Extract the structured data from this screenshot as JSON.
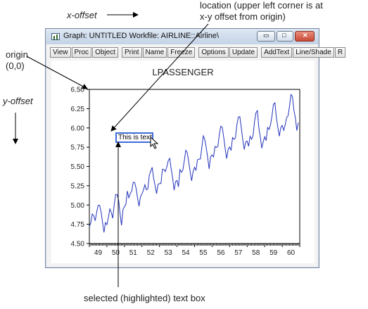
{
  "annotations": {
    "x_offset": "x-offset",
    "y_offset": "y-offset",
    "origin_line1": "origin",
    "origin_line2": "(0,0)",
    "location_line1": "location (upper left corner is at",
    "location_line2": "x-y offset from origin)",
    "selected_box": "selected (highlighted) text box"
  },
  "window": {
    "title": "Graph: UNTITLED   Workfile: AIRLINE::Airline\\",
    "toolbar": [
      "View",
      "Proc",
      "Object",
      "Print",
      "Name",
      "Freeze",
      "Options",
      "Update",
      "AddText",
      "Line/Shade",
      "R"
    ]
  },
  "textbox": {
    "text": "This is text"
  },
  "chart_data": {
    "type": "line",
    "title": "LPASSENGER",
    "xlabel": "",
    "ylabel": "",
    "ylim": [
      4.5,
      6.5
    ],
    "xlim": [
      1949,
      1961
    ],
    "y_ticks": [
      "4.50",
      "4.75",
      "5.00",
      "5.25",
      "5.50",
      "5.75",
      "6.00",
      "6.25",
      "6.50"
    ],
    "x_ticks": [
      "49",
      "50",
      "51",
      "52",
      "53",
      "54",
      "55",
      "56",
      "57",
      "58",
      "59",
      "60"
    ],
    "grid": false,
    "series": [
      {
        "color": "#2233bb",
        "x": [
          1949.0,
          1949.083,
          1949.167,
          1949.25,
          1949.333,
          1949.417,
          1949.5,
          1949.583,
          1949.667,
          1949.75,
          1949.833,
          1949.917,
          1950.0,
          1950.083,
          1950.167,
          1950.25,
          1950.333,
          1950.417,
          1950.5,
          1950.583,
          1950.667,
          1950.75,
          1950.833,
          1950.917,
          1951.0,
          1951.083,
          1951.167,
          1951.25,
          1951.333,
          1951.417,
          1951.5,
          1951.583,
          1951.667,
          1951.75,
          1951.833,
          1951.917,
          1952.0,
          1952.083,
          1952.167,
          1952.25,
          1952.333,
          1952.417,
          1952.5,
          1952.583,
          1952.667,
          1952.75,
          1952.833,
          1952.917,
          1953.0,
          1953.083,
          1953.167,
          1953.25,
          1953.333,
          1953.417,
          1953.5,
          1953.583,
          1953.667,
          1953.75,
          1953.833,
          1953.917,
          1954.0,
          1954.083,
          1954.167,
          1954.25,
          1954.333,
          1954.417,
          1954.5,
          1954.583,
          1954.667,
          1954.75,
          1954.833,
          1954.917,
          1955.0,
          1955.083,
          1955.167,
          1955.25,
          1955.333,
          1955.417,
          1955.5,
          1955.583,
          1955.667,
          1955.75,
          1955.833,
          1955.917,
          1956.0,
          1956.083,
          1956.167,
          1956.25,
          1956.333,
          1956.417,
          1956.5,
          1956.583,
          1956.667,
          1956.75,
          1956.833,
          1956.917,
          1957.0,
          1957.083,
          1957.167,
          1957.25,
          1957.333,
          1957.417,
          1957.5,
          1957.583,
          1957.667,
          1957.75,
          1957.833,
          1957.917,
          1958.0,
          1958.083,
          1958.167,
          1958.25,
          1958.333,
          1958.417,
          1958.5,
          1958.583,
          1958.667,
          1958.75,
          1958.833,
          1958.917,
          1959.0,
          1959.083,
          1959.167,
          1959.25,
          1959.333,
          1959.417,
          1959.5,
          1959.583,
          1959.667,
          1959.75,
          1959.833,
          1959.917,
          1960.0,
          1960.083,
          1960.167,
          1960.25,
          1960.333,
          1960.417,
          1960.5,
          1960.583,
          1960.667,
          1960.75,
          1960.833,
          1960.917
        ],
        "values": [
          4.718,
          4.771,
          4.883,
          4.86,
          4.796,
          4.905,
          4.997,
          4.997,
          4.913,
          4.779,
          4.644,
          4.771,
          4.745,
          4.836,
          4.949,
          4.905,
          4.828,
          5.004,
          5.136,
          5.136,
          5.063,
          4.891,
          4.736,
          4.942,
          4.977,
          5.011,
          5.182,
          5.094,
          5.147,
          5.182,
          5.293,
          5.293,
          5.215,
          5.088,
          4.984,
          5.112,
          5.142,
          5.193,
          5.263,
          5.198,
          5.209,
          5.384,
          5.438,
          5.489,
          5.342,
          5.252,
          5.147,
          5.268,
          5.278,
          5.278,
          5.464,
          5.46,
          5.434,
          5.493,
          5.576,
          5.606,
          5.468,
          5.352,
          5.193,
          5.303,
          5.318,
          5.236,
          5.46,
          5.425,
          5.455,
          5.576,
          5.71,
          5.68,
          5.557,
          5.434,
          5.313,
          5.434,
          5.489,
          5.451,
          5.587,
          5.595,
          5.598,
          5.753,
          5.897,
          5.849,
          5.744,
          5.613,
          5.468,
          5.628,
          5.649,
          5.624,
          5.759,
          5.746,
          5.763,
          5.924,
          6.023,
          6.004,
          5.872,
          5.724,
          5.602,
          5.724,
          5.753,
          5.707,
          5.875,
          5.852,
          5.872,
          6.045,
          6.142,
          6.146,
          6.001,
          5.849,
          5.72,
          5.817,
          5.829,
          5.762,
          5.892,
          5.852,
          5.894,
          6.075,
          6.196,
          6.225,
          6.001,
          5.883,
          5.737,
          5.82,
          5.886,
          5.835,
          6.006,
          5.981,
          6.04,
          6.157,
          6.306,
          6.326,
          6.138,
          6.009,
          5.892,
          6.004,
          6.033,
          5.969,
          6.038,
          6.133,
          6.157,
          6.282,
          6.433,
          6.407,
          6.23,
          6.133,
          5.966,
          6.068
        ]
      }
    ]
  }
}
